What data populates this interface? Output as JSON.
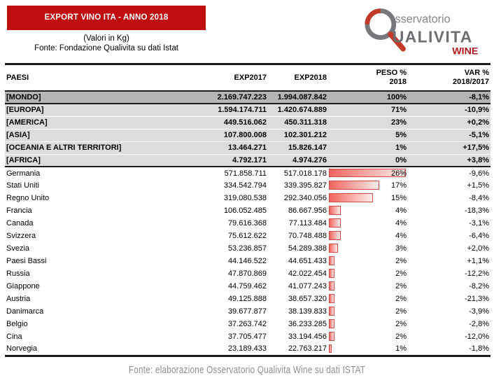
{
  "title_box": "EXPORT VINO ITA - ANNO 2018",
  "subtitle_unit": "(Valori in Kg)",
  "subtitle_source": "Fonte: Fondazione Qualivita su dati Istat",
  "logo": {
    "osservatorio": "sservatorio",
    "qualivita": "UALIVITA",
    "wine": "WINE"
  },
  "footer_source": "Fonte: elaborazione Osservatorio Qualivita Wine su dati ISTAT",
  "colors": {
    "header_red": "#c00d0d",
    "mondo_row": "#b5b5b5",
    "continent_row": "#dcdcdc",
    "bar_fill_start": "#f4655f",
    "bar_fill_end": "#fdedeb",
    "bar_border": "#d24a45",
    "table_border_dark": "#1b1b1b",
    "footer_gray": "#8f8f8f",
    "logo_gray": "#77787b",
    "logo_text_gray": "#6d6e71",
    "logo_small_text_gray": "#85878a",
    "logo_red": "#b11a21",
    "logo_handle_red": "#c13a2a"
  },
  "chart_data": {
    "type": "table",
    "title": "EXPORT VINO ITA - ANNO 2018",
    "unit": "(Valori in Kg)",
    "headers": {
      "paesi": "PAESI",
      "exp2017": "EXP2017",
      "exp2018": "EXP2018",
      "peso_line1": "PESO %",
      "peso_line2": "2018",
      "var_line1": "VAR %",
      "var_line2": "2018/2017"
    },
    "bar_scale_max_percent": 26,
    "aggregates": [
      {
        "paese": "[MONDO]",
        "exp2017": "2.169.747.223",
        "exp2018": "1.994.087.842",
        "peso": "100%",
        "var": "-8,1%"
      },
      {
        "paese": "[EUROPA]",
        "exp2017": "1.594.174.711",
        "exp2018": "1.420.674.889",
        "peso": "71%",
        "var": "-10,9%"
      },
      {
        "paese": "[AMERICA]",
        "exp2017": "449.516.062",
        "exp2018": "450.311.318",
        "peso": "23%",
        "var": "+0,2%"
      },
      {
        "paese": "[ASIA]",
        "exp2017": "107.800.008",
        "exp2018": "102.301.212",
        "peso": "5%",
        "var": "-5,1%"
      },
      {
        "paese": "[OCEANIA E ALTRI TERRITORI]",
        "exp2017": "13.464.271",
        "exp2018": "15.826.147",
        "peso": "1%",
        "var": "+17,5%"
      },
      {
        "paese": "[AFRICA]",
        "exp2017": "4.792.171",
        "exp2018": "4.974.276",
        "peso": "0%",
        "var": "+3,8%"
      }
    ],
    "countries": [
      {
        "paese": "Germania",
        "exp2017": "571.858.711",
        "exp2018": "517.018.178",
        "peso": "26%",
        "peso_value": 26,
        "var": "-9,6%"
      },
      {
        "paese": "Stati Uniti",
        "exp2017": "334.542.794",
        "exp2018": "339.395.827",
        "peso": "17%",
        "peso_value": 17,
        "var": "+1,5%"
      },
      {
        "paese": "Regno Unito",
        "exp2017": "319.080.538",
        "exp2018": "292.340.056",
        "peso": "15%",
        "peso_value": 15,
        "var": "-8,4%"
      },
      {
        "paese": "Francia",
        "exp2017": "106.052.485",
        "exp2018": "86.667.956",
        "peso": "4%",
        "peso_value": 4,
        "var": "-18,3%"
      },
      {
        "paese": "Canada",
        "exp2017": "79.616.368",
        "exp2018": "77.113.484",
        "peso": "4%",
        "peso_value": 4,
        "var": "-3,1%"
      },
      {
        "paese": "Svizzera",
        "exp2017": "75.612.622",
        "exp2018": "70.748.488",
        "peso": "4%",
        "peso_value": 4,
        "var": "-6,4%"
      },
      {
        "paese": "Svezia",
        "exp2017": "53.236.857",
        "exp2018": "54.289.388",
        "peso": "3%",
        "peso_value": 3,
        "var": "+2,0%"
      },
      {
        "paese": "Paesi Bassi",
        "exp2017": "44.146.522",
        "exp2018": "44.651.433",
        "peso": "2%",
        "peso_value": 2,
        "var": "+1,1%"
      },
      {
        "paese": "Russia",
        "exp2017": "47.870.869",
        "exp2018": "42.022.454",
        "peso": "2%",
        "peso_value": 2,
        "var": "-12,2%"
      },
      {
        "paese": "Giappone",
        "exp2017": "44.759.462",
        "exp2018": "41.077.243",
        "peso": "2%",
        "peso_value": 2,
        "var": "-8,2%"
      },
      {
        "paese": "Austria",
        "exp2017": "49.125.888",
        "exp2018": "38.657.320",
        "peso": "2%",
        "peso_value": 2,
        "var": "-21,3%"
      },
      {
        "paese": "Danimarca",
        "exp2017": "39.677.877",
        "exp2018": "38.139.833",
        "peso": "2%",
        "peso_value": 2,
        "var": "-3,9%"
      },
      {
        "paese": "Belgio",
        "exp2017": "37.263.742",
        "exp2018": "36.233.285",
        "peso": "2%",
        "peso_value": 2,
        "var": "-2,8%"
      },
      {
        "paese": "Cina",
        "exp2017": "37.705.477",
        "exp2018": "33.194.456",
        "peso": "2%",
        "peso_value": 2,
        "var": "-12,0%"
      },
      {
        "paese": "Norvegia",
        "exp2017": "23.189.433",
        "exp2018": "22.763.217",
        "peso": "1%",
        "peso_value": 1,
        "var": "-1,8%"
      }
    ]
  }
}
